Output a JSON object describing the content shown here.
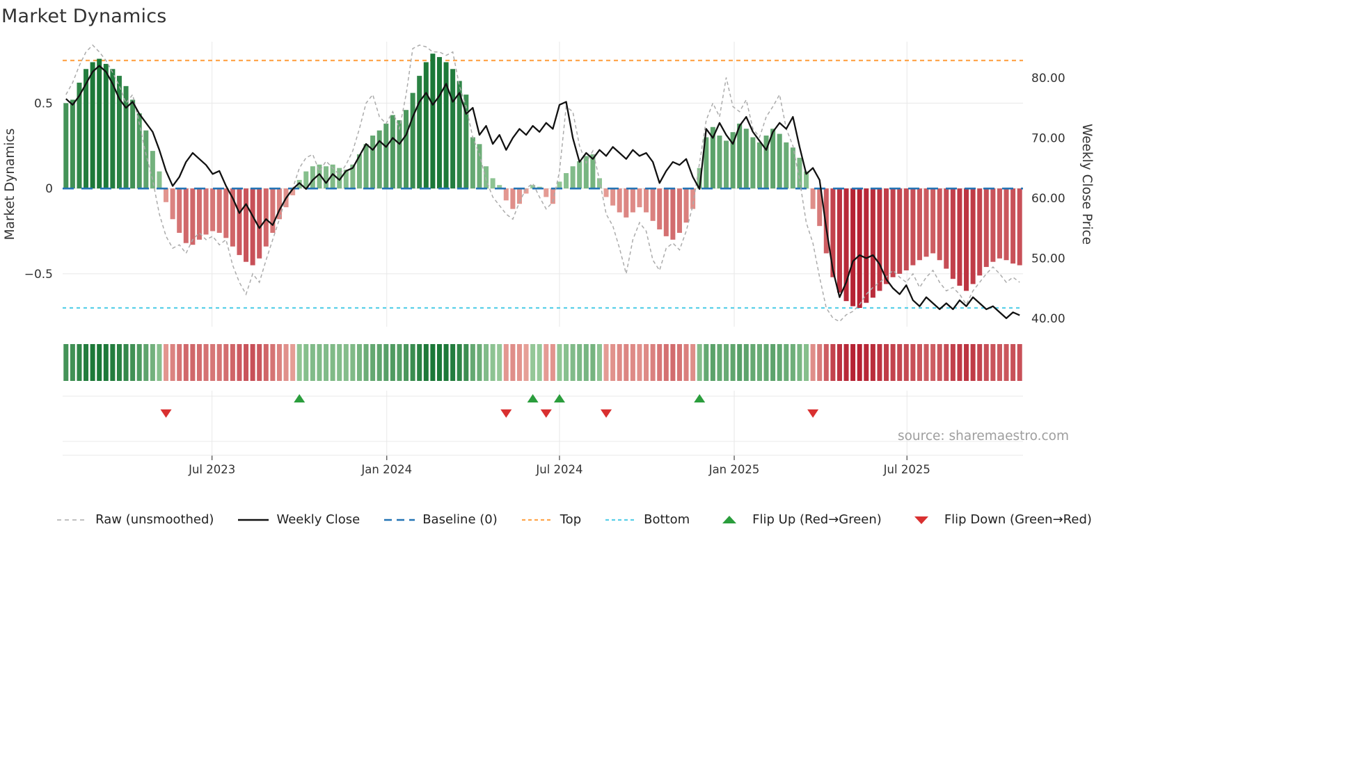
{
  "title": "Market Dynamics",
  "source": "source: sharemaestro.com",
  "axes": {
    "left_label": "Market Dynamics",
    "right_label": "Weekly Close Price",
    "left_ticks": [
      {
        "v": 0.5,
        "label": "0.5"
      },
      {
        "v": 0.0,
        "label": "0"
      },
      {
        "v": -0.5,
        "label": "−0.5"
      }
    ],
    "right_ticks": [
      {
        "v": 80,
        "label": "80.00"
      },
      {
        "v": 70,
        "label": "70.00"
      },
      {
        "v": 60,
        "label": "60.00"
      },
      {
        "v": 50,
        "label": "50.00"
      },
      {
        "v": 40,
        "label": "40.00"
      }
    ],
    "x_ticks": [
      {
        "week": 22.4,
        "label": "Jul 2023"
      },
      {
        "week": 48.6,
        "label": "Jan 2024"
      },
      {
        "week": 74.5,
        "label": "Jul 2024"
      },
      {
        "week": 100.7,
        "label": "Jan 2025"
      },
      {
        "week": 126.6,
        "label": "Jul 2025"
      }
    ]
  },
  "chart_data": {
    "type": "bar+line combo with heatmap strip and flip markers",
    "x_unit": "week",
    "n_points": 144,
    "left_axis": {
      "label": "Market Dynamics",
      "range": [
        -0.81,
        0.86
      ],
      "grid": true
    },
    "right_axis": {
      "label": "Weekly Close Price",
      "range": [
        38.6,
        86.0
      ],
      "grid": false
    },
    "reference_lines": {
      "baseline": 0.0,
      "top": 0.75,
      "bottom": -0.7
    },
    "series": {
      "dynamics": [
        0.5,
        0.52,
        0.62,
        0.7,
        0.74,
        0.76,
        0.73,
        0.7,
        0.66,
        0.6,
        0.52,
        0.44,
        0.34,
        0.22,
        0.1,
        -0.08,
        -0.18,
        -0.26,
        -0.32,
        -0.33,
        -0.3,
        -0.27,
        -0.25,
        -0.26,
        -0.29,
        -0.34,
        -0.39,
        -0.43,
        -0.45,
        -0.41,
        -0.34,
        -0.26,
        -0.18,
        -0.11,
        -0.04,
        0.05,
        0.1,
        0.13,
        0.14,
        0.13,
        0.14,
        0.12,
        0.11,
        0.14,
        0.2,
        0.26,
        0.31,
        0.34,
        0.38,
        0.43,
        0.4,
        0.46,
        0.56,
        0.66,
        0.74,
        0.79,
        0.77,
        0.74,
        0.7,
        0.63,
        0.55,
        0.3,
        0.26,
        0.13,
        0.06,
        0.02,
        -0.07,
        -0.12,
        -0.09,
        -0.03,
        0.02,
        0.01,
        -0.05,
        -0.09,
        0.04,
        0.09,
        0.13,
        0.16,
        0.19,
        0.2,
        0.06,
        -0.05,
        -0.1,
        -0.14,
        -0.17,
        -0.14,
        -0.11,
        -0.14,
        -0.19,
        -0.24,
        -0.28,
        -0.3,
        -0.26,
        -0.2,
        -0.12,
        0.12,
        0.3,
        0.36,
        0.31,
        0.28,
        0.33,
        0.38,
        0.35,
        0.3,
        0.27,
        0.31,
        0.35,
        0.32,
        0.27,
        0.24,
        0.18,
        0.1,
        -0.12,
        -0.22,
        -0.38,
        -0.52,
        -0.61,
        -0.66,
        -0.69,
        -0.7,
        -0.67,
        -0.64,
        -0.6,
        -0.56,
        -0.52,
        -0.5,
        -0.48,
        -0.45,
        -0.42,
        -0.4,
        -0.38,
        -0.42,
        -0.47,
        -0.53,
        -0.57,
        -0.6,
        -0.56,
        -0.51,
        -0.46,
        -0.43,
        -0.41,
        -0.42,
        -0.44,
        -0.45
      ],
      "raw": [
        0.55,
        0.62,
        0.72,
        0.8,
        0.84,
        0.8,
        0.75,
        0.68,
        0.6,
        0.5,
        0.55,
        0.38,
        0.2,
        0.05,
        -0.15,
        -0.28,
        -0.35,
        -0.33,
        -0.38,
        -0.3,
        -0.26,
        -0.3,
        -0.28,
        -0.33,
        -0.3,
        -0.45,
        -0.55,
        -0.62,
        -0.5,
        -0.55,
        -0.42,
        -0.3,
        -0.18,
        -0.05,
        0.0,
        0.12,
        0.18,
        0.2,
        0.1,
        0.16,
        0.12,
        0.08,
        0.14,
        0.22,
        0.35,
        0.5,
        0.55,
        0.42,
        0.38,
        0.45,
        0.35,
        0.55,
        0.82,
        0.84,
        0.83,
        0.8,
        0.8,
        0.78,
        0.8,
        0.6,
        0.48,
        0.3,
        0.2,
        0.05,
        -0.05,
        -0.1,
        -0.15,
        -0.18,
        -0.08,
        0.0,
        0.03,
        -0.05,
        -0.12,
        -0.08,
        0.1,
        0.48,
        0.45,
        0.25,
        0.15,
        0.22,
        0.05,
        -0.15,
        -0.22,
        -0.35,
        -0.5,
        -0.3,
        -0.2,
        -0.25,
        -0.42,
        -0.48,
        -0.35,
        -0.32,
        -0.36,
        -0.25,
        -0.1,
        0.15,
        0.4,
        0.5,
        0.42,
        0.65,
        0.48,
        0.45,
        0.52,
        0.35,
        0.3,
        0.42,
        0.48,
        0.55,
        0.35,
        0.25,
        0.05,
        -0.2,
        -0.32,
        -0.52,
        -0.7,
        -0.76,
        -0.78,
        -0.74,
        -0.72,
        -0.68,
        -0.62,
        -0.58,
        -0.55,
        -0.52,
        -0.48,
        -0.52,
        -0.55,
        -0.5,
        -0.58,
        -0.52,
        -0.48,
        -0.55,
        -0.6,
        -0.58,
        -0.62,
        -0.68,
        -0.6,
        -0.55,
        -0.5,
        -0.46,
        -0.5,
        -0.55,
        -0.52,
        -0.55
      ],
      "weekly_close": [
        76.5,
        75.5,
        77.0,
        79.0,
        81.0,
        82.0,
        81.0,
        79.0,
        76.5,
        75.0,
        76.0,
        74.0,
        72.5,
        71.0,
        68.0,
        64.5,
        62.0,
        63.5,
        66.0,
        67.5,
        66.5,
        65.5,
        64.0,
        64.5,
        62.0,
        60.0,
        57.5,
        59.0,
        57.0,
        55.0,
        56.5,
        55.5,
        58.0,
        60.0,
        61.5,
        62.5,
        61.5,
        63.0,
        64.0,
        62.5,
        64.0,
        63.0,
        64.5,
        65.0,
        67.0,
        69.0,
        68.0,
        69.5,
        68.5,
        70.0,
        69.0,
        70.5,
        73.5,
        76.0,
        77.5,
        75.5,
        77.0,
        79.0,
        76.0,
        77.5,
        74.0,
        75.0,
        70.5,
        72.0,
        69.0,
        70.5,
        68.0,
        70.0,
        71.5,
        70.5,
        72.0,
        71.0,
        72.5,
        71.5,
        75.5,
        76.0,
        70.0,
        66.0,
        67.5,
        66.5,
        68.0,
        67.0,
        68.5,
        67.5,
        66.5,
        68.0,
        67.0,
        67.5,
        66.0,
        62.5,
        64.5,
        66.0,
        65.5,
        66.5,
        63.5,
        61.5,
        71.5,
        70.0,
        72.5,
        70.5,
        69.0,
        72.0,
        73.5,
        71.0,
        69.5,
        68.0,
        71.0,
        72.5,
        71.5,
        73.5,
        68.5,
        64.0,
        65.0,
        63.0,
        55.0,
        48.0,
        43.5,
        46.0,
        49.5,
        50.5,
        50.0,
        50.5,
        49.0,
        46.5,
        45.0,
        44.0,
        45.5,
        43.0,
        42.0,
        43.5,
        42.5,
        41.5,
        42.5,
        41.5,
        43.0,
        42.0,
        43.5,
        42.5,
        41.5,
        42.0,
        41.0,
        40.0,
        41.0,
        40.5
      ]
    },
    "flip_up_weeks": [
      35,
      70,
      74,
      95
    ],
    "flip_down_weeks": [
      15,
      66,
      72,
      81,
      112
    ]
  },
  "legend": {
    "items": [
      {
        "key": "raw",
        "label": "Raw (unsmoothed)",
        "swatch": "line",
        "color": "#ababab",
        "dash": "6 5",
        "width": 1.6
      },
      {
        "key": "weekly-close",
        "label": "Weekly Close",
        "swatch": "line",
        "color": "#111111",
        "dash": "",
        "width": 2.6
      },
      {
        "key": "baseline",
        "label": "Baseline (0)",
        "swatch": "line",
        "color": "#2474b5",
        "dash": "11 7",
        "width": 2.6
      },
      {
        "key": "top",
        "label": "Top",
        "swatch": "line",
        "color": "#ffa64d",
        "dash": "5 4",
        "width": 2.2
      },
      {
        "key": "bottom",
        "label": "Bottom",
        "swatch": "line",
        "color": "#5ad0e8",
        "dash": "5 4",
        "width": 2.2
      },
      {
        "key": "flip-up",
        "label": "Flip Up (Red→Green)",
        "swatch": "triangle-up",
        "color": "#2a9d3c"
      },
      {
        "key": "flip-down",
        "label": "Flip Down (Green→Red)",
        "swatch": "triangle-down",
        "color": "#d93030"
      }
    ]
  },
  "colors": {
    "green_light": "#c7e9c0",
    "green_dark": "#1b7837",
    "red_light": "#fddbc7",
    "red_dark": "#b2182b",
    "baseline": "#2474b5",
    "top": "#ffa64d",
    "bottom": "#5ad0e8",
    "close": "#111111",
    "raw": "#ababab",
    "grid": "#e8e8e8",
    "flip_up": "#2a9d3c",
    "flip_down": "#d93030",
    "tick_text": "#333333",
    "source_text": "#9e9e9e"
  }
}
